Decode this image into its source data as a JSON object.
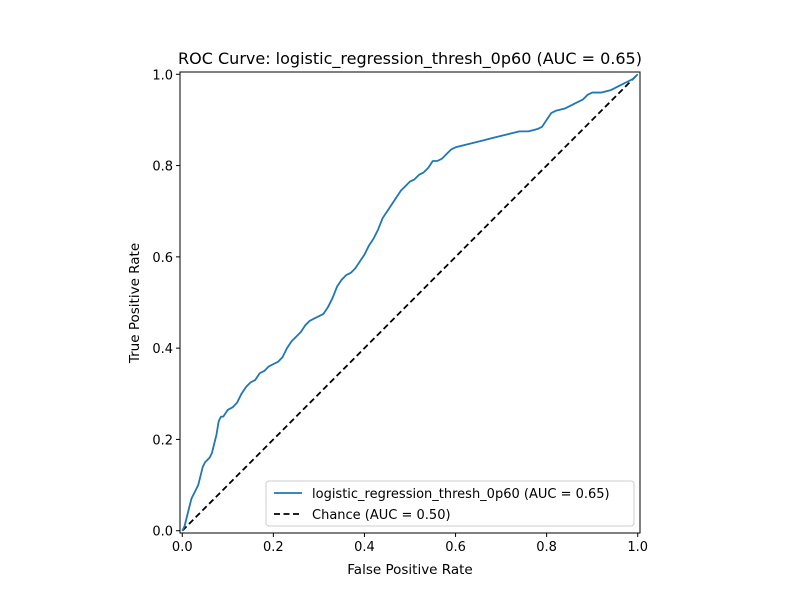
{
  "chart_data": {
    "type": "line",
    "title": "ROC Curve: logistic_regression_thresh_0p60 (AUC = 0.65)",
    "xlabel": "False Positive Rate",
    "ylabel": "True Positive Rate",
    "xlim": [
      -0.005,
      1.005
    ],
    "ylim": [
      -0.005,
      1.005
    ],
    "xticks": [
      0.0,
      0.2,
      0.4,
      0.6,
      0.8,
      1.0
    ],
    "xtick_labels": [
      "0.0",
      "0.2",
      "0.4",
      "0.6",
      "0.8",
      "1.0"
    ],
    "yticks": [
      0.0,
      0.2,
      0.4,
      0.6,
      0.8,
      1.0
    ],
    "ytick_labels": [
      "0.0",
      "0.2",
      "0.4",
      "0.6",
      "0.8",
      "1.0"
    ],
    "grid": false,
    "legend_position": "lower-right",
    "series": [
      {
        "name": "logistic_regression_thresh_0p60 (AUC = 0.65)",
        "color": "#1f77b4",
        "style": "solid",
        "x": [
          0.0,
          0.005,
          0.01,
          0.015,
          0.02,
          0.025,
          0.03,
          0.035,
          0.04,
          0.045,
          0.05,
          0.055,
          0.06,
          0.065,
          0.07,
          0.075,
          0.08,
          0.085,
          0.09,
          0.1,
          0.11,
          0.12,
          0.13,
          0.14,
          0.15,
          0.16,
          0.17,
          0.18,
          0.19,
          0.2,
          0.21,
          0.22,
          0.23,
          0.24,
          0.25,
          0.26,
          0.27,
          0.28,
          0.29,
          0.3,
          0.31,
          0.32,
          0.33,
          0.34,
          0.35,
          0.36,
          0.37,
          0.38,
          0.39,
          0.4,
          0.41,
          0.42,
          0.43,
          0.44,
          0.45,
          0.46,
          0.47,
          0.48,
          0.49,
          0.5,
          0.51,
          0.52,
          0.53,
          0.54,
          0.55,
          0.56,
          0.57,
          0.58,
          0.59,
          0.6,
          0.62,
          0.64,
          0.66,
          0.68,
          0.7,
          0.72,
          0.74,
          0.76,
          0.78,
          0.79,
          0.8,
          0.81,
          0.82,
          0.84,
          0.86,
          0.88,
          0.89,
          0.9,
          0.92,
          0.94,
          0.96,
          0.98,
          0.99,
          1.0
        ],
        "y": [
          0.0,
          0.01,
          0.03,
          0.05,
          0.07,
          0.08,
          0.09,
          0.1,
          0.12,
          0.14,
          0.15,
          0.155,
          0.16,
          0.17,
          0.19,
          0.21,
          0.24,
          0.25,
          0.25,
          0.265,
          0.27,
          0.28,
          0.3,
          0.315,
          0.325,
          0.33,
          0.345,
          0.35,
          0.36,
          0.365,
          0.37,
          0.38,
          0.4,
          0.415,
          0.425,
          0.435,
          0.45,
          0.46,
          0.465,
          0.47,
          0.475,
          0.49,
          0.51,
          0.535,
          0.55,
          0.56,
          0.565,
          0.575,
          0.59,
          0.605,
          0.625,
          0.64,
          0.66,
          0.685,
          0.7,
          0.715,
          0.73,
          0.745,
          0.755,
          0.765,
          0.77,
          0.78,
          0.785,
          0.795,
          0.81,
          0.81,
          0.815,
          0.825,
          0.835,
          0.84,
          0.845,
          0.85,
          0.855,
          0.86,
          0.865,
          0.87,
          0.875,
          0.875,
          0.88,
          0.885,
          0.9,
          0.915,
          0.92,
          0.925,
          0.935,
          0.945,
          0.955,
          0.96,
          0.96,
          0.965,
          0.975,
          0.985,
          0.99,
          1.0
        ]
      },
      {
        "name": "Chance (AUC = 0.50)",
        "color": "#000000",
        "style": "dashed",
        "x": [
          0.0,
          1.0
        ],
        "y": [
          0.0,
          1.0
        ]
      }
    ]
  }
}
